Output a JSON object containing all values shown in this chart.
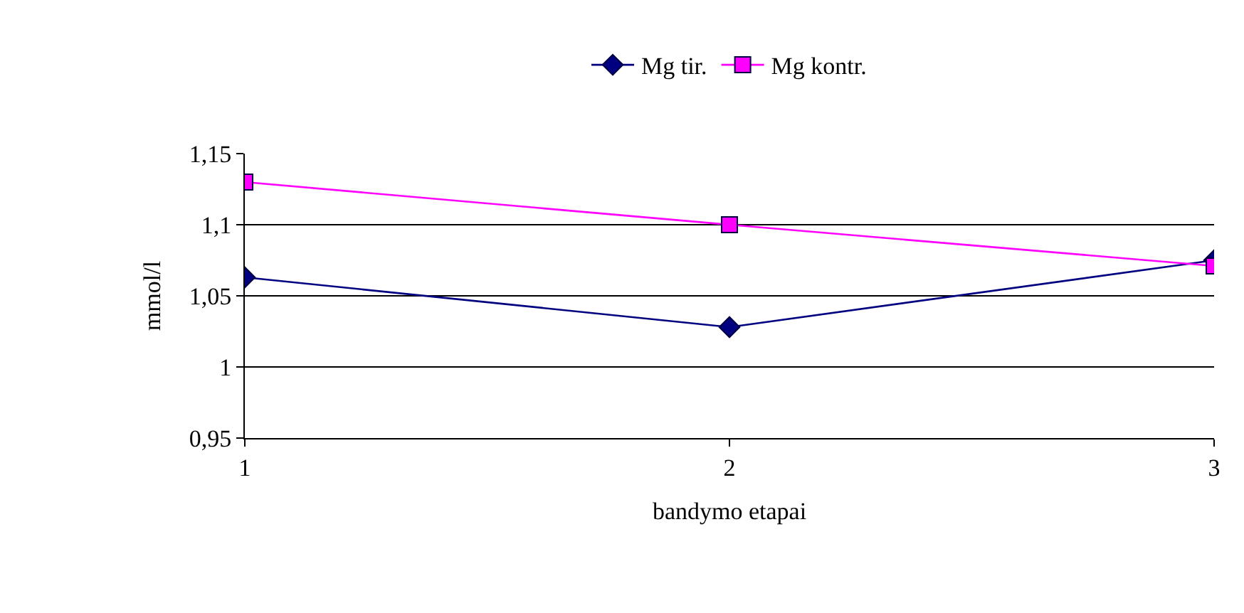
{
  "chart_data": {
    "type": "line",
    "xlabel": "bandymo etapai",
    "ylabel": "mmol/l",
    "x": [
      1,
      2,
      3
    ],
    "series": [
      {
        "name": "Mg tir.",
        "color": "#000080",
        "values": [
          1.063,
          1.028,
          1.075
        ],
        "marker": "diamond"
      },
      {
        "name": "Mg kontr.",
        "color": "#ff00ff",
        "values": [
          1.13,
          1.1,
          1.071
        ],
        "marker": "square"
      }
    ],
    "xlim": [
      1,
      3
    ],
    "xticks": [
      1,
      2,
      3
    ],
    "ylim": [
      0.95,
      1.15
    ],
    "yticks": [
      {
        "value": 0.95,
        "label": "0,95"
      },
      {
        "value": 1,
        "label": "1"
      },
      {
        "value": 1.05,
        "label": "1,05"
      },
      {
        "value": 1.1,
        "label": "1,1"
      },
      {
        "value": 1.15,
        "label": "1,15"
      }
    ],
    "grid": "y",
    "legend": "top",
    "line_style": "solid"
  }
}
